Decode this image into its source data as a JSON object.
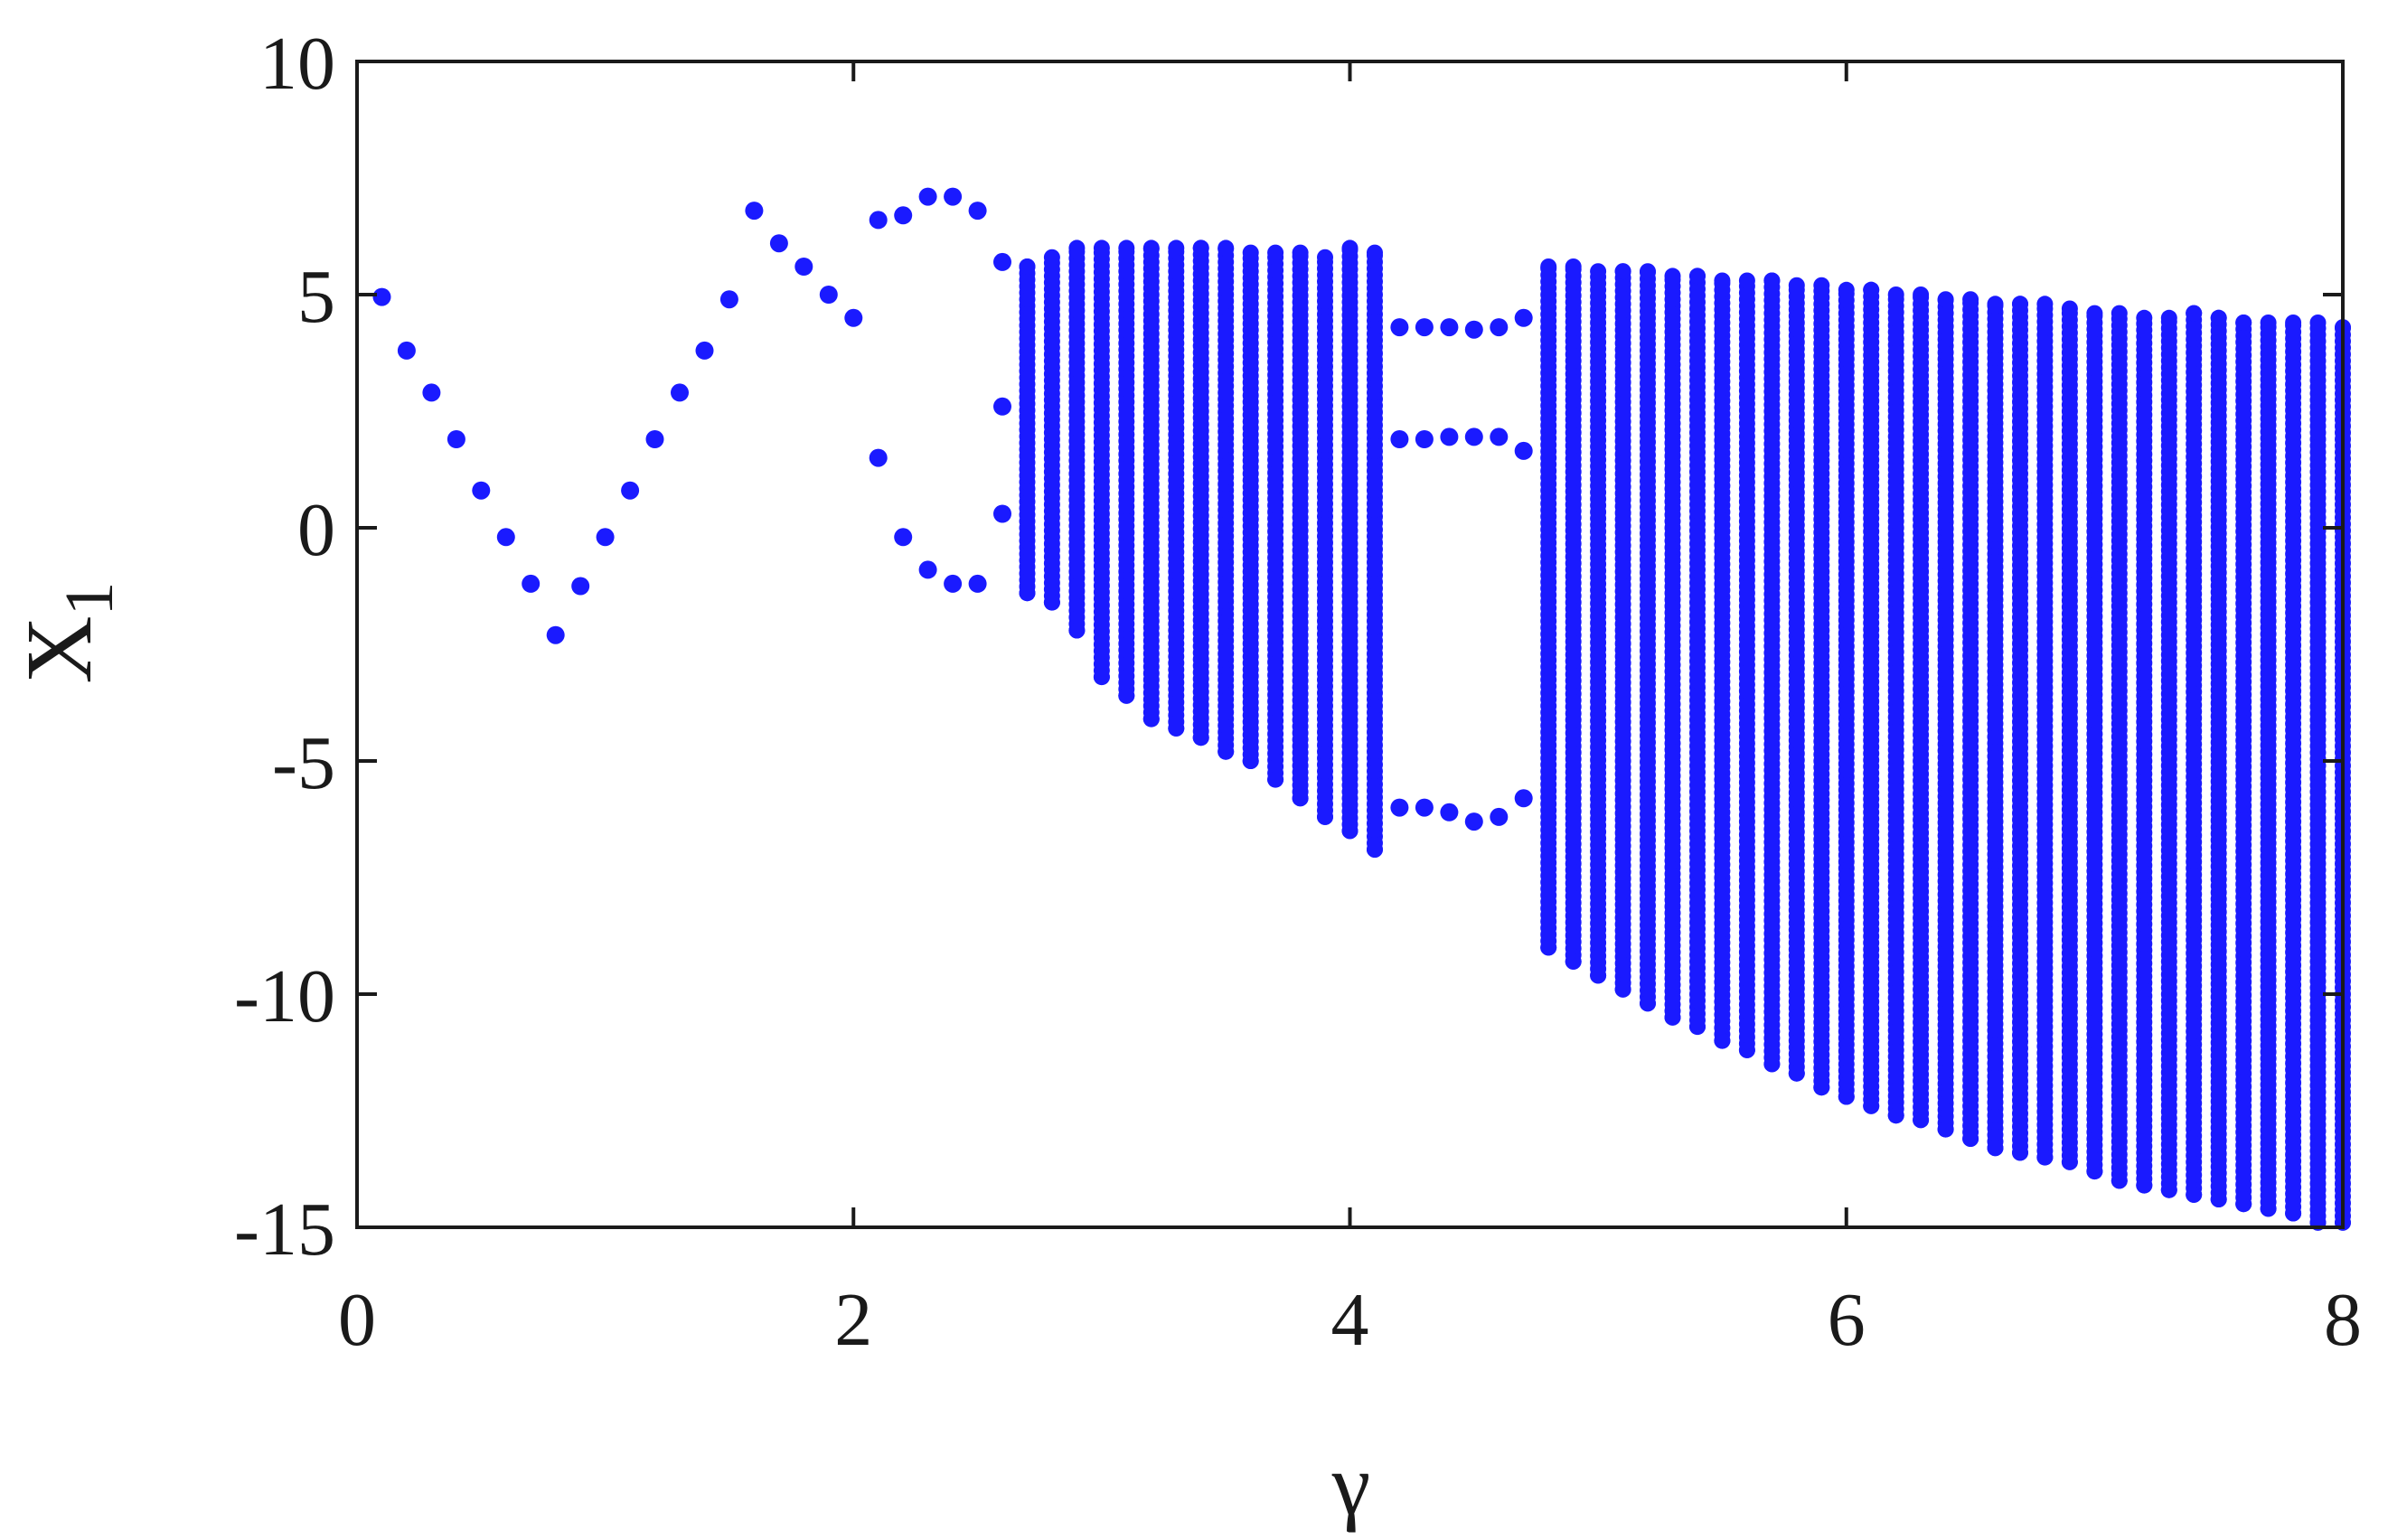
{
  "chart_data": {
    "type": "scatter",
    "title": "",
    "xlabel": "γ",
    "ylabel": "X",
    "ylabel_subscript": "1",
    "xlim": [
      0,
      8
    ],
    "ylim": [
      -15,
      10
    ],
    "xticks": [
      0,
      2,
      4,
      6,
      8
    ],
    "yticks": [
      10,
      5,
      0,
      -5,
      -10,
      -15
    ],
    "xtick_labels": [
      "0",
      "2",
      "4",
      "6",
      "8"
    ],
    "ytick_labels": [
      "10",
      "5",
      "0",
      "-5",
      "-10",
      "-15"
    ],
    "grid": false,
    "legend": "none",
    "marker_color": "#1a1aff",
    "series": [
      {
        "points": [
          [
            0.1,
            4.95
          ],
          [
            0.2,
            3.8
          ],
          [
            0.3,
            2.9
          ],
          [
            0.4,
            1.9
          ],
          [
            0.5,
            0.8
          ],
          [
            0.6,
            -0.2
          ],
          [
            0.7,
            -1.2
          ],
          [
            0.8,
            -2.3
          ],
          [
            0.9,
            -1.25
          ],
          [
            1.0,
            -0.2
          ],
          [
            1.1,
            0.8
          ],
          [
            1.2,
            1.9
          ],
          [
            1.3,
            2.9
          ],
          [
            1.4,
            3.8
          ],
          [
            1.5,
            4.9
          ],
          [
            1.6,
            6.8
          ],
          [
            1.7,
            6.1
          ],
          [
            1.8,
            5.6
          ],
          [
            1.9,
            5.0
          ],
          [
            2.0,
            4.5
          ],
          [
            2.1,
            6.6
          ],
          [
            2.2,
            6.7
          ],
          [
            2.3,
            7.1
          ],
          [
            2.4,
            7.1
          ],
          [
            2.5,
            6.8
          ],
          [
            2.1,
            1.5
          ],
          [
            2.2,
            -0.2
          ],
          [
            2.3,
            -0.9
          ],
          [
            2.4,
            -1.2
          ],
          [
            2.5,
            -1.2
          ],
          [
            2.6,
            5.7
          ],
          [
            2.6,
            2.6
          ],
          [
            2.6,
            0.3
          ],
          [
            4.2,
            4.3
          ],
          [
            4.3,
            4.3
          ],
          [
            4.4,
            4.3
          ],
          [
            4.5,
            4.25
          ],
          [
            4.6,
            4.3
          ],
          [
            4.7,
            4.5
          ],
          [
            4.2,
            1.9
          ],
          [
            4.3,
            1.9
          ],
          [
            4.4,
            1.95
          ],
          [
            4.5,
            1.95
          ],
          [
            4.6,
            1.95
          ],
          [
            4.7,
            1.65
          ],
          [
            4.2,
            -6.0
          ],
          [
            4.3,
            -6.0
          ],
          [
            4.4,
            -6.1
          ],
          [
            4.5,
            -6.3
          ],
          [
            4.6,
            -6.2
          ],
          [
            4.7,
            -5.8
          ]
        ],
        "chaotic_bands": [
          [
            2.7,
            -1.4,
            5.6
          ],
          [
            2.8,
            -1.6,
            5.8
          ],
          [
            2.9,
            -2.2,
            6.0
          ],
          [
            3.0,
            -3.2,
            6.0
          ],
          [
            3.1,
            -3.6,
            6.0
          ],
          [
            3.2,
            -4.1,
            6.0
          ],
          [
            3.3,
            -4.3,
            6.0
          ],
          [
            3.4,
            -4.5,
            6.0
          ],
          [
            3.5,
            -4.8,
            6.0
          ],
          [
            3.6,
            -5.0,
            5.9
          ],
          [
            3.7,
            -5.4,
            5.9
          ],
          [
            3.8,
            -5.8,
            5.9
          ],
          [
            3.9,
            -6.2,
            5.8
          ],
          [
            4.0,
            -6.5,
            6.0
          ],
          [
            4.1,
            -6.9,
            5.9
          ],
          [
            4.8,
            -9.0,
            5.6
          ],
          [
            4.9,
            -9.3,
            5.6
          ],
          [
            5.0,
            -9.6,
            5.5
          ],
          [
            5.1,
            -9.9,
            5.5
          ],
          [
            5.2,
            -10.2,
            5.5
          ],
          [
            5.3,
            -10.5,
            5.4
          ],
          [
            5.4,
            -10.7,
            5.4
          ],
          [
            5.5,
            -11.0,
            5.3
          ],
          [
            5.6,
            -11.2,
            5.3
          ],
          [
            5.7,
            -11.5,
            5.3
          ],
          [
            5.8,
            -11.7,
            5.2
          ],
          [
            5.9,
            -12.0,
            5.2
          ],
          [
            6.0,
            -12.2,
            5.1
          ],
          [
            6.1,
            -12.4,
            5.1
          ],
          [
            6.2,
            -12.6,
            5.0
          ],
          [
            6.3,
            -12.7,
            5.0
          ],
          [
            6.4,
            -12.9,
            4.9
          ],
          [
            6.5,
            -13.1,
            4.9
          ],
          [
            6.6,
            -13.3,
            4.8
          ],
          [
            6.7,
            -13.4,
            4.8
          ],
          [
            6.8,
            -13.5,
            4.8
          ],
          [
            6.9,
            -13.6,
            4.7
          ],
          [
            7.0,
            -13.8,
            4.6
          ],
          [
            7.1,
            -14.0,
            4.6
          ],
          [
            7.2,
            -14.1,
            4.5
          ],
          [
            7.3,
            -14.2,
            4.5
          ],
          [
            7.4,
            -14.3,
            4.6
          ],
          [
            7.5,
            -14.4,
            4.5
          ],
          [
            7.6,
            -14.5,
            4.4
          ],
          [
            7.7,
            -14.6,
            4.4
          ],
          [
            7.8,
            -14.7,
            4.4
          ],
          [
            7.9,
            -14.9,
            4.4
          ],
          [
            8.0,
            -14.9,
            4.3
          ]
        ]
      }
    ]
  }
}
